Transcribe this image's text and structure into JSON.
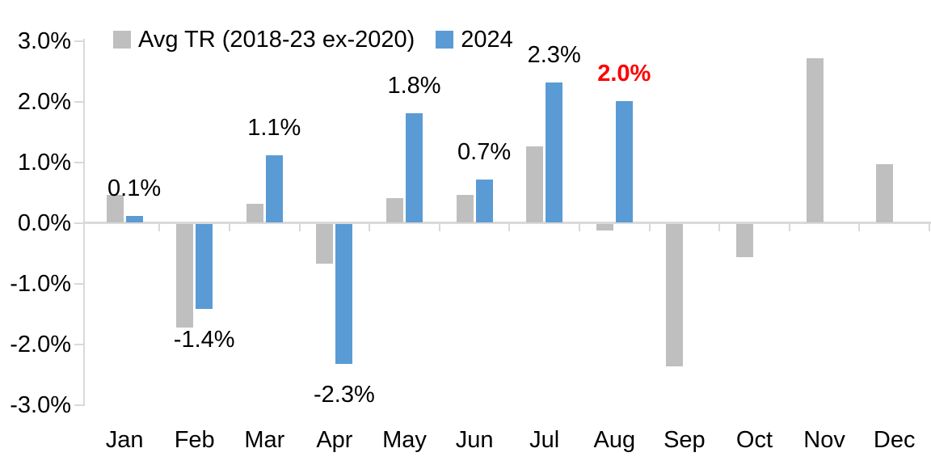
{
  "chart_data": {
    "type": "bar",
    "title": "",
    "xlabel": "",
    "ylabel": "",
    "categories": [
      "Jan",
      "Feb",
      "Mar",
      "Apr",
      "May",
      "Jun",
      "Jul",
      "Aug",
      "Sep",
      "Oct",
      "Nov",
      "Dec"
    ],
    "series": [
      {
        "name": "Avg TR (2018-23 ex-2020)",
        "color": "#BFBFBF",
        "values": [
          0.45,
          -1.7,
          0.3,
          -0.65,
          0.4,
          0.45,
          1.25,
          -0.1,
          -2.35,
          -0.55,
          2.7,
          0.95
        ]
      },
      {
        "name": "2024",
        "color": "#5B9BD5",
        "values": [
          0.1,
          -1.4,
          1.1,
          -2.3,
          1.8,
          0.7,
          2.3,
          2.0,
          null,
          null,
          null,
          null
        ],
        "data_labels": [
          {
            "category": "Jan",
            "text": "0.1%",
            "color": "#000000",
            "bold": false
          },
          {
            "category": "Feb",
            "text": "-1.4%",
            "color": "#000000",
            "bold": false
          },
          {
            "category": "Mar",
            "text": "1.1%",
            "color": "#000000",
            "bold": false
          },
          {
            "category": "Apr",
            "text": "-2.3%",
            "color": "#000000",
            "bold": false
          },
          {
            "category": "May",
            "text": "1.8%",
            "color": "#000000",
            "bold": false
          },
          {
            "category": "Jun",
            "text": "0.7%",
            "color": "#000000",
            "bold": false
          },
          {
            "category": "Jul",
            "text": "2.3%",
            "color": "#000000",
            "bold": false
          },
          {
            "category": "Aug",
            "text": "2.0%",
            "color": "#FF0000",
            "bold": true
          }
        ]
      }
    ],
    "y_axis": {
      "min": -3.0,
      "max": 3.0,
      "step": 1.0,
      "tick_labels": [
        "3.0%",
        "2.0%",
        "1.0%",
        "0.0%",
        "-1.0%",
        "-2.0%",
        "-3.0%"
      ]
    },
    "legend_position": "top",
    "grid": false,
    "axis_color": "#D9D9D9",
    "text_color": "#000000",
    "background": "#FFFFFF"
  }
}
